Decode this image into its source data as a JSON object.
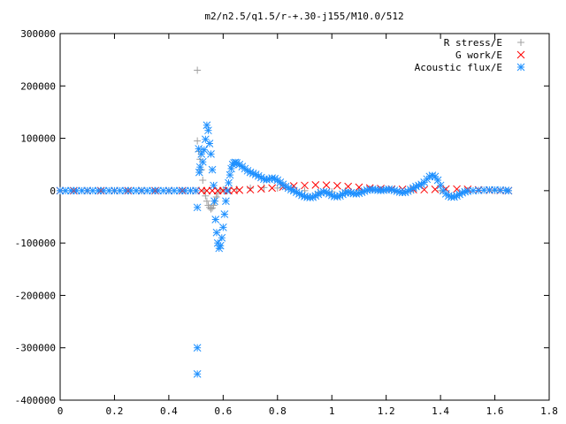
{
  "chart_data": {
    "type": "scatter",
    "title": "m2/n2.5/q1.5/r-+.30-j155/M10.0/512",
    "xlabel": "",
    "ylabel": "",
    "xlim": [
      0,
      1.8
    ],
    "ylim": [
      -400000,
      300000
    ],
    "x_ticks": [
      0,
      0.2,
      0.4,
      0.6,
      0.8,
      1,
      1.2,
      1.4,
      1.6,
      1.8
    ],
    "x_tick_labels": [
      "0",
      "0.2",
      "0.4",
      "0.6",
      "0.8",
      "1",
      "1.2",
      "1.4",
      "1.6",
      "1.8"
    ],
    "y_ticks": [
      300000,
      200000,
      100000,
      0,
      -100000,
      -200000,
      -300000,
      -400000
    ],
    "y_tick_labels": [
      "300000",
      "200000",
      "100000",
      "0",
      "-100000",
      "-200000",
      "-300000",
      "-400000"
    ],
    "grid": false,
    "legend_position": "top-right",
    "series": [
      {
        "name": "R stress/E",
        "marker": "plus",
        "color": "#a0a0a0",
        "points": [
          [
            0.0,
            0
          ],
          [
            0.05,
            0
          ],
          [
            0.1,
            0
          ],
          [
            0.15,
            0
          ],
          [
            0.2,
            0
          ],
          [
            0.25,
            0
          ],
          [
            0.3,
            0
          ],
          [
            0.35,
            0
          ],
          [
            0.4,
            0
          ],
          [
            0.45,
            0
          ],
          [
            0.48,
            0
          ],
          [
            0.505,
            230000
          ],
          [
            0.505,
            95000
          ],
          [
            0.51,
            75000
          ],
          [
            0.515,
            60000
          ],
          [
            0.52,
            40000
          ],
          [
            0.525,
            20000
          ],
          [
            0.53,
            0
          ],
          [
            0.535,
            -10000
          ],
          [
            0.54,
            -20000
          ],
          [
            0.545,
            -28000
          ],
          [
            0.55,
            -32000
          ],
          [
            0.555,
            -35000
          ],
          [
            0.56,
            -33000
          ],
          [
            0.565,
            -28000
          ],
          [
            0.57,
            -20000
          ],
          [
            0.575,
            -12000
          ],
          [
            0.58,
            -5000
          ],
          [
            0.59,
            0
          ],
          [
            0.6,
            2000
          ],
          [
            0.65,
            3000
          ],
          [
            0.7,
            5000
          ],
          [
            0.75,
            6000
          ],
          [
            0.8,
            5000
          ],
          [
            0.85,
            3000
          ],
          [
            0.9,
            0
          ],
          [
            0.95,
            -3000
          ],
          [
            1.0,
            -2000
          ],
          [
            1.05,
            0
          ],
          [
            1.1,
            1000
          ],
          [
            1.2,
            2000
          ],
          [
            1.3,
            1000
          ],
          [
            1.4,
            0
          ],
          [
            1.5,
            0
          ],
          [
            1.6,
            0
          ],
          [
            1.65,
            0
          ]
        ]
      },
      {
        "name": "G work/E",
        "marker": "cross",
        "color": "#ff0000",
        "points": [
          [
            0.0,
            0
          ],
          [
            0.05,
            0
          ],
          [
            0.1,
            0
          ],
          [
            0.15,
            0
          ],
          [
            0.2,
            0
          ],
          [
            0.25,
            0
          ],
          [
            0.3,
            0
          ],
          [
            0.35,
            0
          ],
          [
            0.4,
            0
          ],
          [
            0.45,
            0
          ],
          [
            0.5,
            0
          ],
          [
            0.52,
            0
          ],
          [
            0.54,
            0
          ],
          [
            0.56,
            0
          ],
          [
            0.58,
            0
          ],
          [
            0.6,
            0
          ],
          [
            0.62,
            0
          ],
          [
            0.64,
            500
          ],
          [
            0.66,
            1000
          ],
          [
            0.7,
            2000
          ],
          [
            0.74,
            3500
          ],
          [
            0.78,
            5000
          ],
          [
            0.82,
            7000
          ],
          [
            0.86,
            9000
          ],
          [
            0.9,
            10000
          ],
          [
            0.94,
            11000
          ],
          [
            0.98,
            10500
          ],
          [
            1.02,
            9500
          ],
          [
            1.06,
            8000
          ],
          [
            1.1,
            6500
          ],
          [
            1.14,
            5000
          ],
          [
            1.18,
            4000
          ],
          [
            1.22,
            3000
          ],
          [
            1.26,
            2500
          ],
          [
            1.3,
            2000
          ],
          [
            1.34,
            2000
          ],
          [
            1.38,
            2500
          ],
          [
            1.42,
            3000
          ],
          [
            1.46,
            3000
          ],
          [
            1.5,
            2500
          ],
          [
            1.54,
            1500
          ],
          [
            1.58,
            800
          ],
          [
            1.62,
            300
          ],
          [
            1.65,
            0
          ]
        ]
      },
      {
        "name": "Acoustic flux/E",
        "marker": "star",
        "color": "#1e90ff",
        "points": [
          [
            0.0,
            0
          ],
          [
            0.02,
            0
          ],
          [
            0.04,
            0
          ],
          [
            0.06,
            0
          ],
          [
            0.08,
            0
          ],
          [
            0.1,
            0
          ],
          [
            0.12,
            0
          ],
          [
            0.14,
            0
          ],
          [
            0.16,
            0
          ],
          [
            0.18,
            0
          ],
          [
            0.2,
            0
          ],
          [
            0.22,
            0
          ],
          [
            0.24,
            0
          ],
          [
            0.26,
            0
          ],
          [
            0.28,
            0
          ],
          [
            0.3,
            0
          ],
          [
            0.32,
            0
          ],
          [
            0.34,
            0
          ],
          [
            0.36,
            0
          ],
          [
            0.38,
            0
          ],
          [
            0.4,
            0
          ],
          [
            0.42,
            0
          ],
          [
            0.44,
            0
          ],
          [
            0.46,
            0
          ],
          [
            0.48,
            0
          ],
          [
            0.5,
            0
          ],
          [
            0.505,
            -300000
          ],
          [
            0.505,
            -350000
          ],
          [
            0.505,
            -32000
          ],
          [
            0.51,
            80000
          ],
          [
            0.512,
            35000
          ],
          [
            0.515,
            45000
          ],
          [
            0.52,
            70000
          ],
          [
            0.525,
            55000
          ],
          [
            0.53,
            78000
          ],
          [
            0.535,
            98000
          ],
          [
            0.54,
            125000
          ],
          [
            0.545,
            115000
          ],
          [
            0.55,
            90000
          ],
          [
            0.555,
            70000
          ],
          [
            0.56,
            40000
          ],
          [
            0.565,
            10000
          ],
          [
            0.568,
            -20000
          ],
          [
            0.572,
            -55000
          ],
          [
            0.576,
            -80000
          ],
          [
            0.58,
            -100000
          ],
          [
            0.585,
            -110000
          ],
          [
            0.59,
            -105000
          ],
          [
            0.595,
            -90000
          ],
          [
            0.6,
            -70000
          ],
          [
            0.605,
            -45000
          ],
          [
            0.61,
            -20000
          ],
          [
            0.615,
            0
          ],
          [
            0.62,
            15000
          ],
          [
            0.625,
            30000
          ],
          [
            0.63,
            42000
          ],
          [
            0.635,
            50000
          ],
          [
            0.64,
            53000
          ],
          [
            0.645,
            54000
          ],
          [
            0.65,
            53000
          ],
          [
            0.66,
            50000
          ],
          [
            0.67,
            46000
          ],
          [
            0.68,
            42000
          ],
          [
            0.69,
            38000
          ],
          [
            0.7,
            35000
          ],
          [
            0.71,
            33000
          ],
          [
            0.72,
            31000
          ],
          [
            0.73,
            28000
          ],
          [
            0.74,
            25000
          ],
          [
            0.75,
            22000
          ],
          [
            0.76,
            21000
          ],
          [
            0.77,
            22000
          ],
          [
            0.78,
            24000
          ],
          [
            0.79,
            23000
          ],
          [
            0.8,
            20000
          ],
          [
            0.81,
            16000
          ],
          [
            0.82,
            12000
          ],
          [
            0.83,
            8000
          ],
          [
            0.84,
            5000
          ],
          [
            0.85,
            2000
          ],
          [
            0.86,
            0
          ],
          [
            0.87,
            -3000
          ],
          [
            0.88,
            -6000
          ],
          [
            0.89,
            -9000
          ],
          [
            0.9,
            -11000
          ],
          [
            0.91,
            -12500
          ],
          [
            0.92,
            -13000
          ],
          [
            0.93,
            -12500
          ],
          [
            0.94,
            -10000
          ],
          [
            0.95,
            -7000
          ],
          [
            0.96,
            -4000
          ],
          [
            0.97,
            -2000
          ],
          [
            0.98,
            -3000
          ],
          [
            0.99,
            -6000
          ],
          [
            1.0,
            -9000
          ],
          [
            1.01,
            -11000
          ],
          [
            1.02,
            -11500
          ],
          [
            1.03,
            -10000
          ],
          [
            1.04,
            -7000
          ],
          [
            1.05,
            -4000
          ],
          [
            1.06,
            -3000
          ],
          [
            1.07,
            -4000
          ],
          [
            1.08,
            -5500
          ],
          [
            1.09,
            -6000
          ],
          [
            1.1,
            -5000
          ],
          [
            1.11,
            -3000
          ],
          [
            1.12,
            -1000
          ],
          [
            1.13,
            1000
          ],
          [
            1.14,
            2000
          ],
          [
            1.15,
            2500
          ],
          [
            1.16,
            2000
          ],
          [
            1.17,
            1000
          ],
          [
            1.18,
            500
          ],
          [
            1.19,
            1000
          ],
          [
            1.2,
            2000
          ],
          [
            1.21,
            2500
          ],
          [
            1.22,
            2000
          ],
          [
            1.23,
            500
          ],
          [
            1.24,
            -1000
          ],
          [
            1.25,
            -2500
          ],
          [
            1.26,
            -3500
          ],
          [
            1.27,
            -3000
          ],
          [
            1.28,
            -1000
          ],
          [
            1.29,
            2000
          ],
          [
            1.3,
            5000
          ],
          [
            1.31,
            8000
          ],
          [
            1.32,
            10000
          ],
          [
            1.33,
            12000
          ],
          [
            1.34,
            16000
          ],
          [
            1.35,
            22000
          ],
          [
            1.36,
            27000
          ],
          [
            1.37,
            29000
          ],
          [
            1.38,
            27000
          ],
          [
            1.39,
            20000
          ],
          [
            1.4,
            10000
          ],
          [
            1.41,
            0
          ],
          [
            1.42,
            -6000
          ],
          [
            1.43,
            -10000
          ],
          [
            1.44,
            -12000
          ],
          [
            1.45,
            -12000
          ],
          [
            1.46,
            -10000
          ],
          [
            1.47,
            -7000
          ],
          [
            1.48,
            -4000
          ],
          [
            1.49,
            -2000
          ],
          [
            1.5,
            -1000
          ],
          [
            1.52,
            0
          ],
          [
            1.54,
            500
          ],
          [
            1.56,
            1000
          ],
          [
            1.58,
            1500
          ],
          [
            1.6,
            1500
          ],
          [
            1.62,
            1000
          ],
          [
            1.64,
            500
          ],
          [
            1.65,
            0
          ]
        ]
      }
    ]
  }
}
